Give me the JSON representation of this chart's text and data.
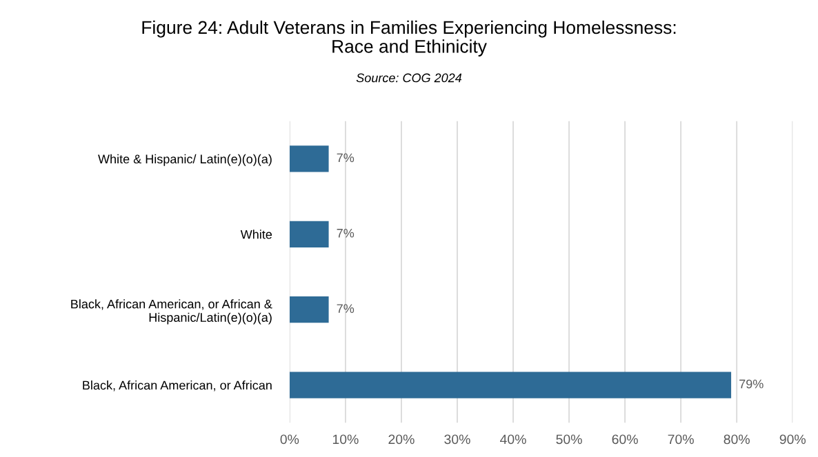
{
  "chart_data": {
    "type": "bar",
    "orientation": "horizontal",
    "title": "Figure 24: Adult Veterans in Families Experiencing Homelessness:\nRace and Ethinicity",
    "subtitle": "Source: COG 2024",
    "categories": [
      "White & Hispanic/ Latin(e)(o)(a)",
      "White",
      "Black, African American, or African &\nHispanic/Latin(e)(o)(a)",
      "Black, African American, or African"
    ],
    "values": [
      7,
      7,
      7,
      79
    ],
    "value_labels": [
      "7%",
      "7%",
      "7%",
      "79%"
    ],
    "color": "#2e6b96",
    "xlim": [
      0,
      90
    ],
    "xticks": [
      {
        "value": 0,
        "label": "0%"
      },
      {
        "value": 10,
        "label": "10%"
      },
      {
        "value": 20,
        "label": "20%"
      },
      {
        "value": 30,
        "label": "30%"
      },
      {
        "value": 40,
        "label": "40%"
      },
      {
        "value": 50,
        "label": "50%"
      },
      {
        "value": 60,
        "label": "60%"
      },
      {
        "value": 70,
        "label": "70%"
      },
      {
        "value": 80,
        "label": "80%"
      },
      {
        "value": 90,
        "label": "90%"
      }
    ],
    "grid": "x"
  }
}
